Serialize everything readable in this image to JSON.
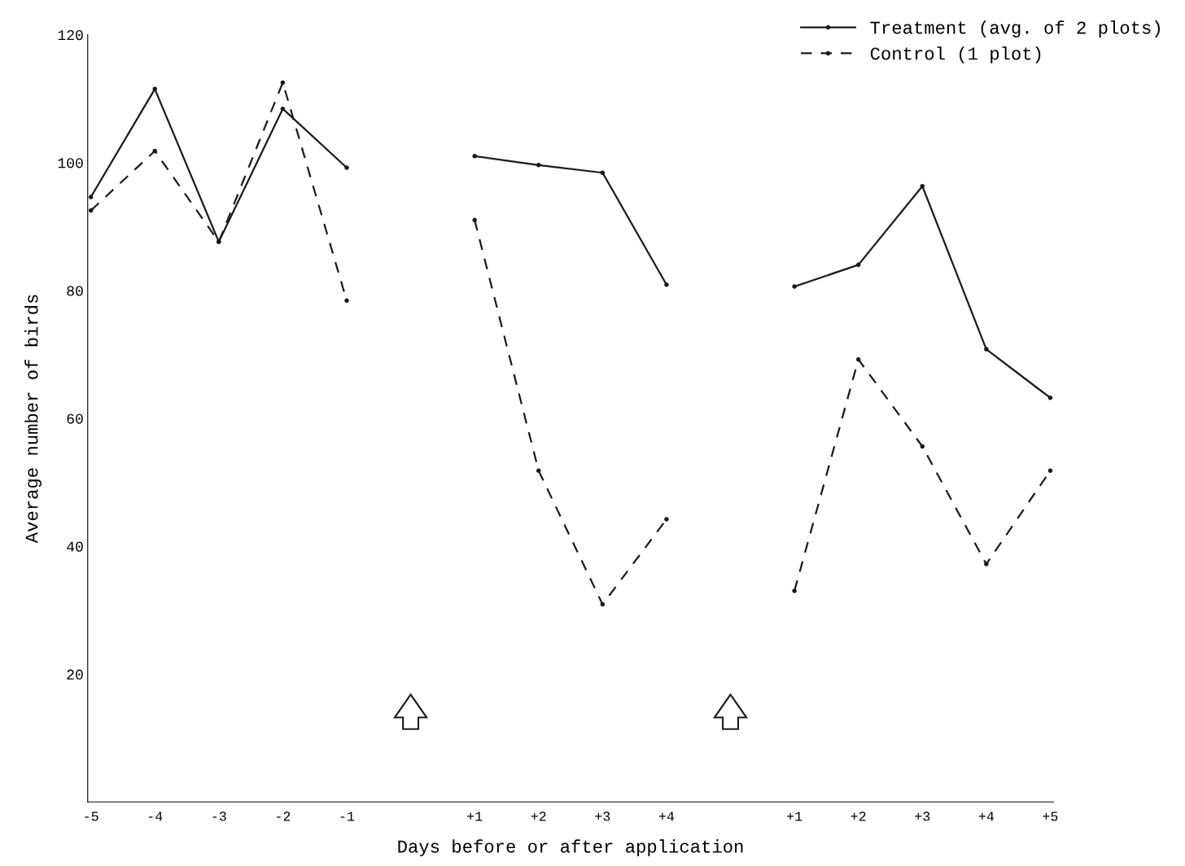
{
  "chart_data": {
    "type": "line",
    "xlabel": "Days before or after application",
    "ylabel": "Average number of birds",
    "categories": [
      "-5",
      "-4",
      "-3",
      "-2",
      "-1",
      null,
      "+1",
      "+2",
      "+3",
      "+4",
      null,
      "+1",
      "+2",
      "+3",
      "+4",
      "+5"
    ],
    "series": [
      {
        "name": "Treatment (avg. of 2 plots)",
        "color": "#1a1a1a",
        "line_style": "solid",
        "values": [
          94.6,
          111.5,
          87.6,
          108.4,
          99.2,
          null,
          101,
          99.6,
          98.4,
          80.9,
          null,
          80.6,
          84,
          96.3,
          70.8,
          63.2
        ]
      },
      {
        "name": "Control (1 plot)",
        "color": "#1a1a1a",
        "line_style": "dashed",
        "values": [
          92.5,
          101.8,
          87.6,
          112.5,
          78.4,
          null,
          91,
          51.8,
          30.9,
          44.2,
          null,
          33,
          69.2,
          55.6,
          37.2,
          51.8
        ]
      }
    ],
    "ylim": [
      0,
      120
    ],
    "yticks": [
      20,
      40,
      60,
      80,
      100,
      120
    ],
    "grid": false,
    "legend": "top right",
    "marker": "circle"
  }
}
